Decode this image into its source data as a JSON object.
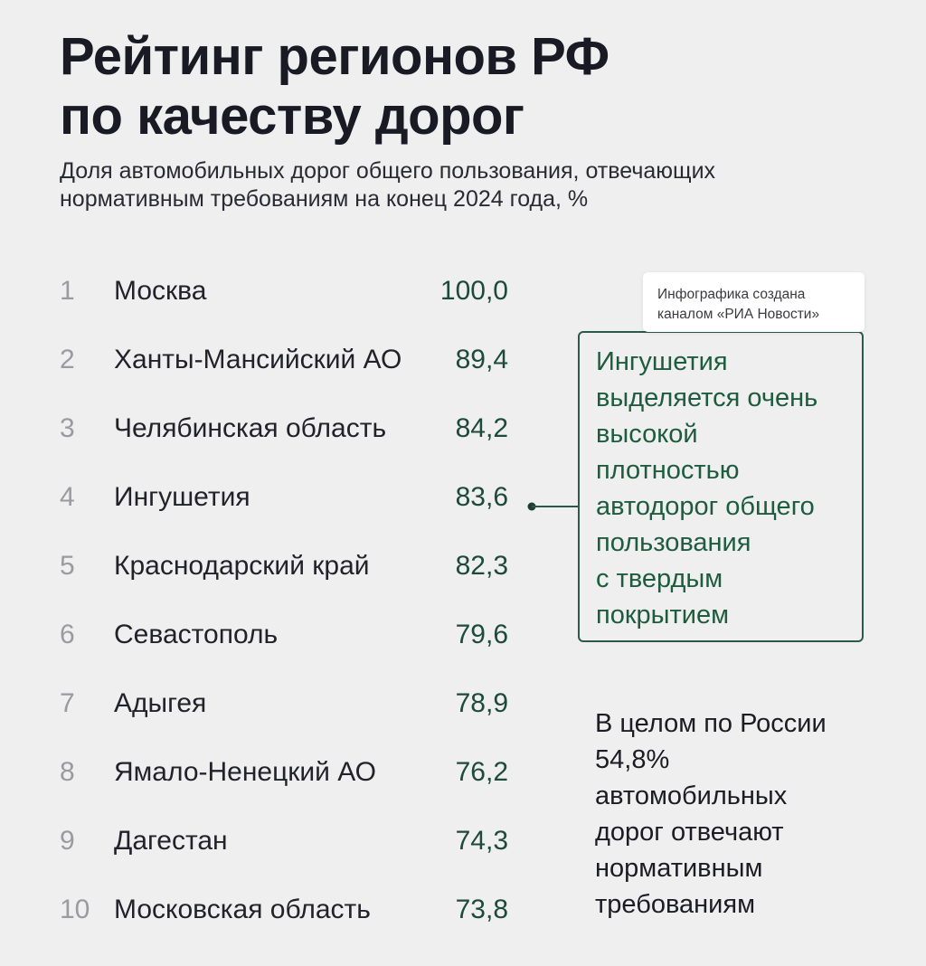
{
  "title_lines": [
    "Рейтинг регионов РФ",
    "по качеству дорог"
  ],
  "subtitle_lines": [
    "Доля автомобильных дорог общего пользования, отвечающих",
    "нормативным требованиям на конец 2024 года, %"
  ],
  "chart_data": {
    "type": "table",
    "title": "Рейтинг регионов РФ по качеству дорог",
    "subtitle": "Доля автомобильных дорог общего пользования, отвечающих нормативным требованиям на конец 2024 года, %",
    "rows": [
      {
        "rank": "1",
        "region": "Москва",
        "value": "100,0"
      },
      {
        "rank": "2",
        "region": "Ханты-Мансийский АО",
        "value": "89,4"
      },
      {
        "rank": "3",
        "region": "Челябинская область",
        "value": "84,2"
      },
      {
        "rank": "4",
        "region": "Ингушетия",
        "value": "83,6"
      },
      {
        "rank": "5",
        "region": "Краснодарский край",
        "value": "82,3"
      },
      {
        "rank": "6",
        "region": "Севастополь",
        "value": "79,6"
      },
      {
        "rank": "7",
        "region": "Адыгея",
        "value": "78,9"
      },
      {
        "rank": "8",
        "region": "Ямало-Ненецкий АО",
        "value": "76,2"
      },
      {
        "rank": "9",
        "region": "Дагестан",
        "value": "74,3"
      },
      {
        "rank": "10",
        "region": "Московская область",
        "value": "73,8"
      }
    ]
  },
  "source_tag_lines": [
    "Инфографика создана",
    "каналом «РИА Новости»"
  ],
  "callout_lines": [
    "Ингушетия",
    "выделяется очень",
    "высокой",
    "плотностью",
    "автодорог общего",
    "пользования",
    "с твердым",
    "покрытием"
  ],
  "note_lines": [
    "В целом по России",
    "54,8%",
    "автомобильных",
    "дорог отвечают",
    "нормативным",
    "требованиям"
  ],
  "colors": {
    "background": "#efefef",
    "value_text": "#1d4a3a",
    "callout_border": "#2c5a48",
    "callout_text": "#1e5c3e",
    "rank_text": "#9a9aa0"
  }
}
